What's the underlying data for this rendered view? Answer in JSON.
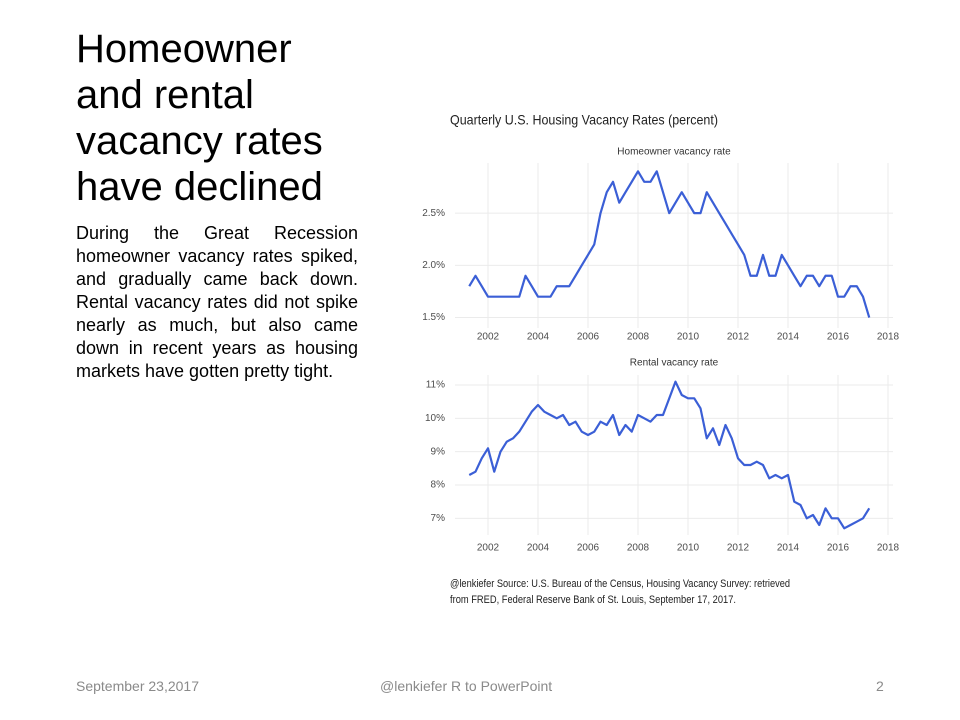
{
  "slide": {
    "title": "Homeowner and rental vacancy rates have declined",
    "body": "During the Great Recession homeowner vacancy rates spiked, and gradually came back down. Rental vacancy rates did not spike nearly as much, but also came down in recent years as housing markets have gotten pretty tight.",
    "footer_date": "September 23,2017",
    "footer_center": "@lenkiefer R to PowerPoint",
    "page_number": "2"
  },
  "figure": {
    "title": "Quarterly U.S. Housing Vacancy Rates (percent)",
    "caption": [
      "@lenkiefer Source: U.S. Bureau of the Census, Housing Vacancy Survey: retrieved",
      "from FRED, Federal Reserve Bank of St. Louis, September 17, 2017."
    ]
  },
  "chart_data": [
    {
      "type": "line",
      "title": "Homeowner vacancy rate",
      "color": "#3b5fd6",
      "grid": true,
      "x": [
        2001.25,
        2001.5,
        2001.75,
        2002,
        2002.25,
        2002.5,
        2002.75,
        2003,
        2003.25,
        2003.5,
        2003.75,
        2004,
        2004.25,
        2004.5,
        2004.75,
        2005,
        2005.25,
        2005.5,
        2005.75,
        2006,
        2006.25,
        2006.5,
        2006.75,
        2007,
        2007.25,
        2007.5,
        2007.75,
        2008,
        2008.25,
        2008.5,
        2008.75,
        2009,
        2009.25,
        2009.5,
        2009.75,
        2010,
        2010.25,
        2010.5,
        2010.75,
        2011,
        2011.25,
        2011.5,
        2011.75,
        2012,
        2012.25,
        2012.5,
        2012.75,
        2013,
        2013.25,
        2013.5,
        2013.75,
        2014,
        2014.25,
        2014.5,
        2014.75,
        2015,
        2015.25,
        2015.5,
        2015.75,
        2016,
        2016.25,
        2016.5,
        2016.75,
        2017,
        2017.25
      ],
      "values": [
        1.8,
        1.9,
        1.8,
        1.7,
        1.7,
        1.7,
        1.7,
        1.7,
        1.7,
        1.9,
        1.8,
        1.7,
        1.7,
        1.7,
        1.8,
        1.8,
        1.8,
        1.9,
        2.0,
        2.1,
        2.2,
        2.5,
        2.7,
        2.8,
        2.6,
        2.7,
        2.8,
        2.9,
        2.8,
        2.8,
        2.9,
        2.7,
        2.5,
        2.6,
        2.7,
        2.6,
        2.5,
        2.5,
        2.7,
        2.6,
        2.5,
        2.4,
        2.3,
        2.2,
        2.1,
        1.9,
        1.9,
        2.1,
        1.9,
        1.9,
        2.1,
        2.0,
        1.9,
        1.8,
        1.9,
        1.9,
        1.8,
        1.9,
        1.9,
        1.7,
        1.7,
        1.8,
        1.8,
        1.7,
        1.5
      ],
      "xlim": [
        2000.68,
        2018.2
      ],
      "xticks": [
        2002,
        2004,
        2006,
        2008,
        2010,
        2012,
        2014,
        2016,
        2018
      ],
      "ylim": [
        1.4,
        2.98
      ],
      "yticks": [
        {
          "value": 1.5,
          "label": "1.5%"
        },
        {
          "value": 2.0,
          "label": "2.0%"
        },
        {
          "value": 2.5,
          "label": "2.5%"
        }
      ]
    },
    {
      "type": "line",
      "title": "Rental vacancy rate",
      "color": "#3b5fd6",
      "grid": true,
      "x": [
        2001.25,
        2001.5,
        2001.75,
        2002,
        2002.25,
        2002.5,
        2002.75,
        2003,
        2003.25,
        2003.5,
        2003.75,
        2004,
        2004.25,
        2004.5,
        2004.75,
        2005,
        2005.25,
        2005.5,
        2005.75,
        2006,
        2006.25,
        2006.5,
        2006.75,
        2007,
        2007.25,
        2007.5,
        2007.75,
        2008,
        2008.25,
        2008.5,
        2008.75,
        2009,
        2009.25,
        2009.5,
        2009.75,
        2010,
        2010.25,
        2010.5,
        2010.75,
        2011,
        2011.25,
        2011.5,
        2011.75,
        2012,
        2012.25,
        2012.5,
        2012.75,
        2013,
        2013.25,
        2013.5,
        2013.75,
        2014,
        2014.25,
        2014.5,
        2014.75,
        2015,
        2015.25,
        2015.5,
        2015.75,
        2016,
        2016.25,
        2016.5,
        2016.75,
        2017,
        2017.25
      ],
      "values": [
        8.3,
        8.4,
        8.8,
        9.1,
        8.4,
        9.0,
        9.3,
        9.4,
        9.6,
        9.9,
        10.2,
        10.4,
        10.2,
        10.1,
        10.0,
        10.1,
        9.8,
        9.9,
        9.6,
        9.5,
        9.6,
        9.9,
        9.8,
        10.1,
        9.5,
        9.8,
        9.6,
        10.1,
        10.0,
        9.9,
        10.1,
        10.1,
        10.6,
        11.1,
        10.7,
        10.6,
        10.6,
        10.3,
        9.4,
        9.7,
        9.2,
        9.8,
        9.4,
        8.8,
        8.6,
        8.6,
        8.7,
        8.6,
        8.2,
        8.3,
        8.2,
        8.3,
        7.5,
        7.4,
        7.0,
        7.1,
        6.8,
        7.3,
        7.0,
        7.0,
        6.7,
        6.8,
        6.9,
        7.0,
        7.3
      ],
      "xlim": [
        2000.68,
        2018.2
      ],
      "xticks": [
        2002,
        2004,
        2006,
        2008,
        2010,
        2012,
        2014,
        2016,
        2018
      ],
      "ylim": [
        6.5,
        11.3
      ],
      "yticks": [
        {
          "value": 7,
          "label": "7%"
        },
        {
          "value": 8,
          "label": "8%"
        },
        {
          "value": 9,
          "label": "9%"
        },
        {
          "value": 10,
          "label": "10%"
        },
        {
          "value": 11,
          "label": "11%"
        }
      ]
    }
  ]
}
